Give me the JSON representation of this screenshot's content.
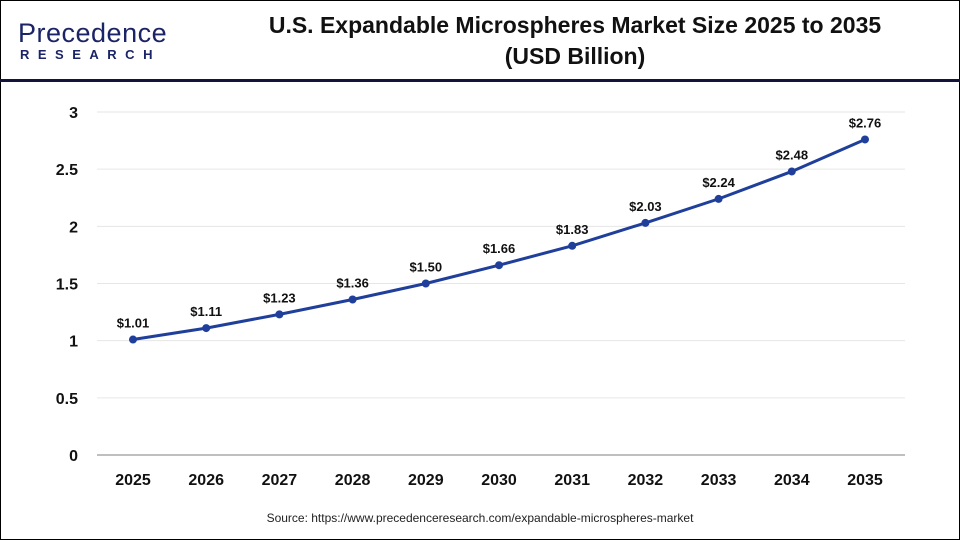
{
  "logo": {
    "text_main": "Precedence",
    "text_sub": "RESEARCH"
  },
  "source": "Source: https://www.precedenceresearch.com/expandable-microspheres-market",
  "colors": {
    "line": "#1f3f9a",
    "header_rule": "#14143c",
    "grid": "#e6e6e6",
    "axis": "#bfbfbf"
  },
  "chart_data": {
    "type": "line",
    "title": "U.S. Expandable Microspheres Market Size 2025 to 2035",
    "subtitle": "(USD Billion)",
    "categories": [
      "2025",
      "2026",
      "2027",
      "2028",
      "2029",
      "2030",
      "2031",
      "2032",
      "2033",
      "2034",
      "2035"
    ],
    "values": [
      1.01,
      1.11,
      1.23,
      1.36,
      1.5,
      1.66,
      1.83,
      2.03,
      2.24,
      2.48,
      2.76
    ],
    "data_labels": [
      "$1.01",
      "$1.11",
      "$1.23",
      "$1.36",
      "$1.50",
      "$1.66",
      "$1.83",
      "$2.03",
      "$2.24",
      "$2.48",
      "$2.76"
    ],
    "yticks": [
      "0",
      "0.5",
      "1",
      "1.5",
      "2",
      "2.5",
      "3"
    ],
    "ylim": [
      0,
      3
    ],
    "grid": true,
    "xlabel": "",
    "ylabel": ""
  }
}
